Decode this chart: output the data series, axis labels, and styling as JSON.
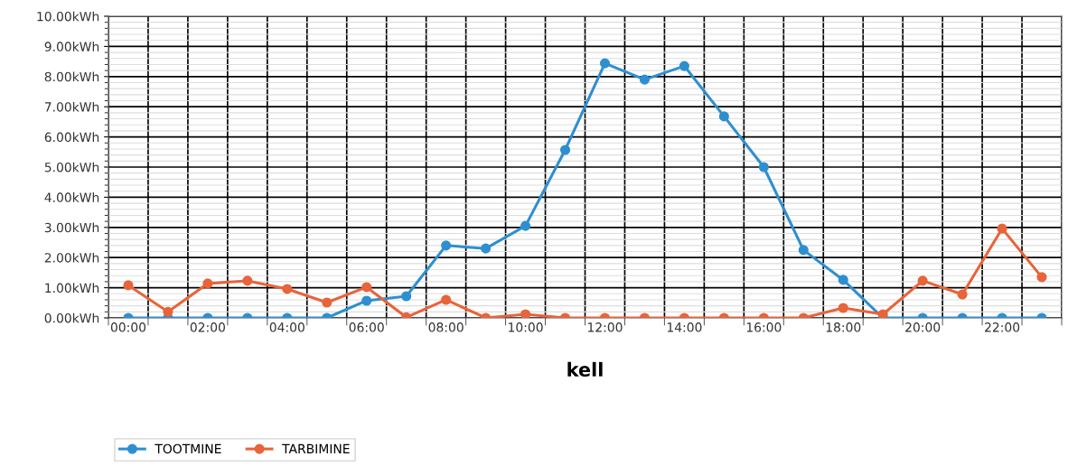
{
  "chart_data": {
    "type": "line",
    "xlabel": "kell",
    "categories": [
      "00:00",
      null,
      "02:00",
      null,
      "04:00",
      null,
      "06:00",
      null,
      "08:00",
      null,
      "10:00",
      null,
      "12:00",
      null,
      "14:00",
      null,
      "16:00",
      null,
      "18:00",
      null,
      "20:00",
      null,
      "22:00",
      null
    ],
    "series": [
      {
        "name": "TOOTMINE",
        "color": "#2e8fd0",
        "values": [
          0,
          0,
          0,
          0,
          0,
          0,
          0.57,
          0.72,
          2.4,
          2.3,
          3.05,
          5.57,
          8.44,
          7.9,
          8.35,
          6.68,
          5.0,
          2.25,
          1.26,
          0,
          0,
          0,
          0,
          0
        ]
      },
      {
        "name": "TARBIMINE",
        "color": "#e8643a",
        "values": [
          1.08,
          0.2,
          1.14,
          1.23,
          0.96,
          0.51,
          1.02,
          0.02,
          0.6,
          0,
          0.12,
          0,
          0,
          0,
          0,
          0,
          0,
          0,
          0.33,
          0.12,
          1.23,
          0.78,
          2.96,
          1.35
        ]
      }
    ],
    "ylim": [
      0,
      10
    ],
    "yticks": [
      {
        "value": 0,
        "label": "0.00kWh"
      },
      {
        "value": 1,
        "label": "1.00kWh"
      },
      {
        "value": 2,
        "label": "2.00kWh"
      },
      {
        "value": 3,
        "label": "3.00kWh"
      },
      {
        "value": 4,
        "label": "4.00kWh"
      },
      {
        "value": 5,
        "label": "5.00kWh"
      },
      {
        "value": 6,
        "label": "6.00kWh"
      },
      {
        "value": 7,
        "label": "7.00kWh"
      },
      {
        "value": 8,
        "label": "8.00kWh"
      },
      {
        "value": 9,
        "label": "9.00kWh"
      },
      {
        "value": 10,
        "label": "10.00kWh"
      }
    ],
    "grid": true,
    "legend": "bottom left",
    "marker": "circle",
    "line_style": "solid"
  }
}
